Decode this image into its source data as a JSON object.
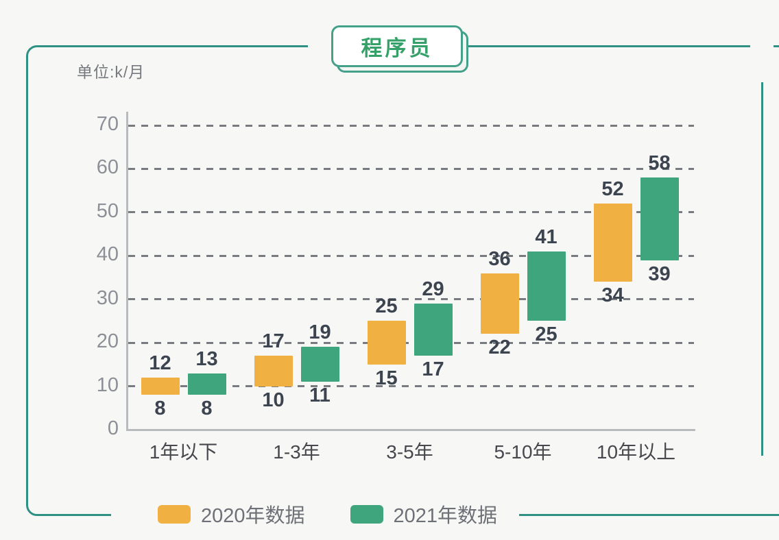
{
  "page": {
    "title": "程序员",
    "unit_label": "单位:k/月",
    "background_color": "#f7f7f5",
    "frame_color": "#2f9184",
    "title_text_color": "#35a169"
  },
  "legend": [
    {
      "label": "2020年数据",
      "color": "#F1B042"
    },
    {
      "label": "2021年数据",
      "color": "#3EA57D"
    }
  ],
  "chart_data": {
    "type": "bar",
    "variant": "floating_range_columns",
    "title": "程序员",
    "unit": "k/月",
    "xlabel": "",
    "ylabel": "单位:k/月",
    "categories": [
      "1年以下",
      "1-3年",
      "3-5年",
      "5-10年",
      "10年以上"
    ],
    "series": [
      {
        "name": "2020年数据",
        "color": "#F1B042",
        "ranges": [
          [
            8,
            12
          ],
          [
            10,
            17
          ],
          [
            15,
            25
          ],
          [
            22,
            36
          ],
          [
            34,
            52
          ]
        ]
      },
      {
        "name": "2021年数据",
        "color": "#3EA57D",
        "ranges": [
          [
            8,
            13
          ],
          [
            11,
            19
          ],
          [
            17,
            29
          ],
          [
            25,
            41
          ],
          [
            39,
            58
          ]
        ]
      }
    ],
    "ylim": [
      0,
      70
    ],
    "yticks": [
      0,
      10,
      20,
      30,
      40,
      50,
      60,
      70
    ],
    "grid": "horizontal-dashed",
    "legend_position": "bottom"
  }
}
